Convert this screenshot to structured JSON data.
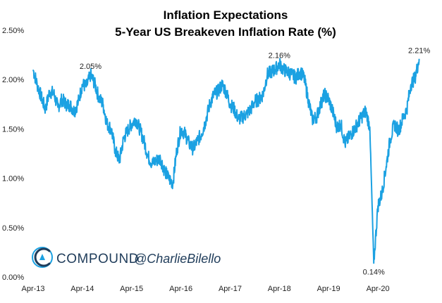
{
  "chart_data": {
    "type": "line",
    "title": "Inflation Expectations",
    "subtitle": "5-Year US Breakeven Inflation Rate (%)",
    "xlabel": "",
    "ylabel": "",
    "x_range": [
      "2013-04-01",
      "2021-03-01"
    ],
    "ylim": [
      0,
      2.5
    ],
    "y_ticks": [
      "0.00%",
      "0.50%",
      "1.00%",
      "1.50%",
      "2.00%",
      "2.50%"
    ],
    "x_ticks": [
      "Apr-13",
      "Apr-14",
      "Apr-15",
      "Apr-16",
      "Apr-17",
      "Apr-18",
      "Apr-19",
      "Apr-20"
    ],
    "grid": false,
    "legend": "none",
    "series": [
      {
        "color": "#1ba1e2",
        "points": [
          [
            "2013-04-01",
            2.1
          ],
          [
            "2013-05-01",
            1.95
          ],
          [
            "2013-06-01",
            1.82
          ],
          [
            "2013-07-01",
            1.7
          ],
          [
            "2013-08-01",
            1.88
          ],
          [
            "2013-09-01",
            1.86
          ],
          [
            "2013-10-01",
            1.72
          ],
          [
            "2013-11-01",
            1.8
          ],
          [
            "2013-12-01",
            1.75
          ],
          [
            "2014-01-01",
            1.74
          ],
          [
            "2014-02-01",
            1.68
          ],
          [
            "2014-03-01",
            1.77
          ],
          [
            "2014-04-01",
            1.95
          ],
          [
            "2014-05-01",
            1.93
          ],
          [
            "2014-06-01",
            2.05
          ],
          [
            "2014-07-01",
            1.96
          ],
          [
            "2014-08-01",
            1.82
          ],
          [
            "2014-09-01",
            1.75
          ],
          [
            "2014-10-01",
            1.55
          ],
          [
            "2014-11-01",
            1.5
          ],
          [
            "2014-12-01",
            1.28
          ],
          [
            "2015-01-01",
            1.18
          ],
          [
            "2015-02-01",
            1.4
          ],
          [
            "2015-03-01",
            1.48
          ],
          [
            "2015-04-01",
            1.55
          ],
          [
            "2015-05-01",
            1.6
          ],
          [
            "2015-06-01",
            1.5
          ],
          [
            "2015-07-01",
            1.38
          ],
          [
            "2015-08-01",
            1.22
          ],
          [
            "2015-09-01",
            1.15
          ],
          [
            "2015-10-01",
            1.18
          ],
          [
            "2015-11-01",
            1.2
          ],
          [
            "2015-12-01",
            1.08
          ],
          [
            "2016-01-01",
            1.0
          ],
          [
            "2016-02-01",
            0.95
          ],
          [
            "2016-03-01",
            1.28
          ],
          [
            "2016-04-01",
            1.5
          ],
          [
            "2016-05-01",
            1.45
          ],
          [
            "2016-06-01",
            1.35
          ],
          [
            "2016-07-01",
            1.3
          ],
          [
            "2016-08-01",
            1.38
          ],
          [
            "2016-09-01",
            1.45
          ],
          [
            "2016-10-01",
            1.58
          ],
          [
            "2016-11-01",
            1.75
          ],
          [
            "2016-12-01",
            1.85
          ],
          [
            "2017-01-01",
            1.88
          ],
          [
            "2017-02-01",
            1.95
          ],
          [
            "2017-03-01",
            1.88
          ],
          [
            "2017-04-01",
            1.75
          ],
          [
            "2017-05-01",
            1.7
          ],
          [
            "2017-06-01",
            1.6
          ],
          [
            "2017-07-01",
            1.62
          ],
          [
            "2017-08-01",
            1.65
          ],
          [
            "2017-09-01",
            1.7
          ],
          [
            "2017-10-01",
            1.78
          ],
          [
            "2017-11-01",
            1.8
          ],
          [
            "2017-12-01",
            1.85
          ],
          [
            "2018-01-01",
            2.05
          ],
          [
            "2018-02-01",
            2.08
          ],
          [
            "2018-03-01",
            2.1
          ],
          [
            "2018-04-01",
            2.16
          ],
          [
            "2018-05-01",
            2.1
          ],
          [
            "2018-06-01",
            2.08
          ],
          [
            "2018-07-01",
            2.05
          ],
          [
            "2018-08-01",
            2.02
          ],
          [
            "2018-09-01",
            2.08
          ],
          [
            "2018-10-01",
            2.02
          ],
          [
            "2018-11-01",
            1.8
          ],
          [
            "2018-12-01",
            1.6
          ],
          [
            "2019-01-01",
            1.62
          ],
          [
            "2019-02-01",
            1.75
          ],
          [
            "2019-03-01",
            1.85
          ],
          [
            "2019-04-01",
            1.8
          ],
          [
            "2019-05-01",
            1.68
          ],
          [
            "2019-06-01",
            1.52
          ],
          [
            "2019-07-01",
            1.55
          ],
          [
            "2019-08-01",
            1.35
          ],
          [
            "2019-09-01",
            1.42
          ],
          [
            "2019-10-01",
            1.48
          ],
          [
            "2019-11-01",
            1.55
          ],
          [
            "2019-12-01",
            1.62
          ],
          [
            "2020-01-01",
            1.68
          ],
          [
            "2020-02-01",
            1.52
          ],
          [
            "2020-03-01",
            0.14
          ],
          [
            "2020-04-01",
            0.72
          ],
          [
            "2020-05-01",
            0.85
          ],
          [
            "2020-06-01",
            1.12
          ],
          [
            "2020-07-01",
            1.4
          ],
          [
            "2020-08-01",
            1.55
          ],
          [
            "2020-09-01",
            1.48
          ],
          [
            "2020-10-01",
            1.6
          ],
          [
            "2020-11-01",
            1.7
          ],
          [
            "2020-12-01",
            1.95
          ],
          [
            "2021-01-01",
            2.02
          ],
          [
            "2021-02-01",
            2.21
          ]
        ]
      }
    ],
    "annotations": [
      {
        "label": "2.05%",
        "x": "2014-06-01",
        "y": 2.05,
        "placement": "above"
      },
      {
        "label": "2.16%",
        "x": "2018-04-01",
        "y": 2.16,
        "placement": "above"
      },
      {
        "label": "0.14%",
        "x": "2020-03-01",
        "y": 0.14,
        "placement": "below"
      },
      {
        "label": "2.21%",
        "x": "2021-02-01",
        "y": 2.21,
        "placement": "above"
      }
    ]
  },
  "branding": {
    "company": "COMPOUND",
    "handle": "@CharlieBilello",
    "logo_icon": "compound-c-logo-icon",
    "brand_color": "#1f3c5a",
    "accent_color": "#1ba1e2"
  }
}
